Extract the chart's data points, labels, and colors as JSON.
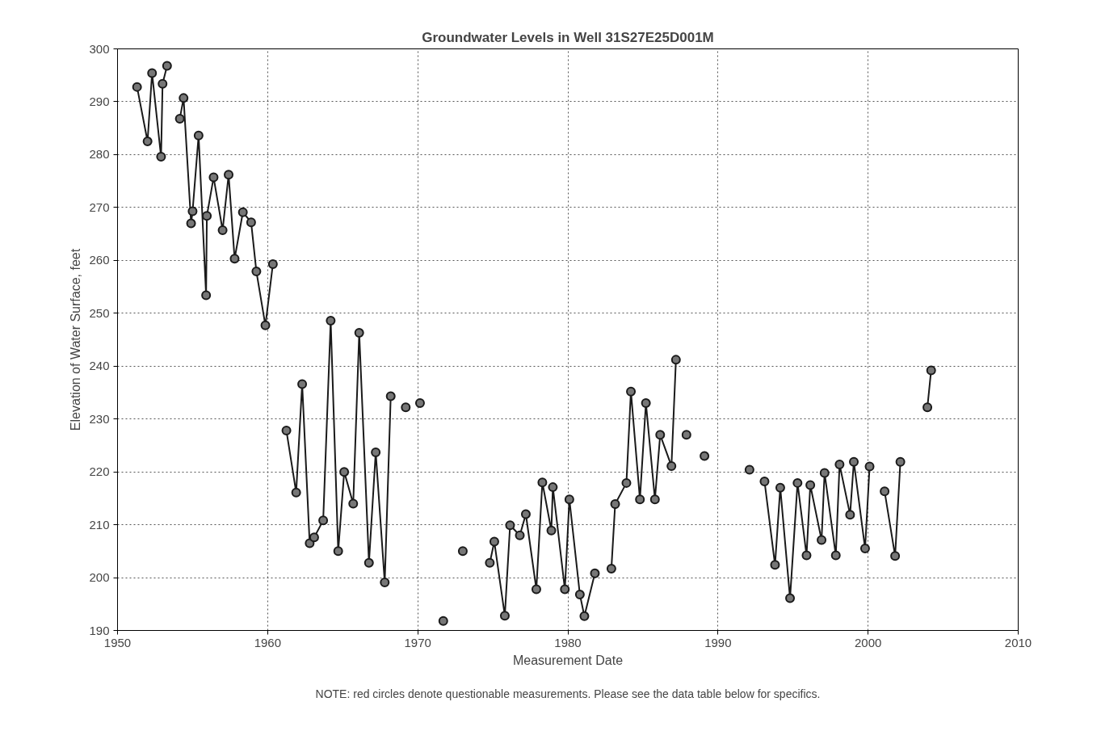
{
  "chart_data": {
    "type": "line",
    "title": "Groundwater Levels in Well 31S27E25D001M",
    "xlabel": "Measurement Date",
    "ylabel": "Elevation of Water Surface, feet",
    "annotations": [
      "NOTE: red circles denote questionable measurements. Please see the data table below for specifics."
    ],
    "xlim": [
      1950,
      2010
    ],
    "xticks": [
      1950,
      1960,
      1970,
      1980,
      1990,
      2000,
      2010
    ],
    "ylim": [
      190,
      300
    ],
    "yticks": [
      190,
      200,
      210,
      220,
      230,
      240,
      250,
      260,
      270,
      280,
      290,
      300
    ],
    "grid": true,
    "marker": "circle",
    "line_style": "solid",
    "series": [
      {
        "color": "#1a1a1a",
        "x": [
          1951.3,
          1952.0,
          1952.3,
          1952.9,
          1953.0,
          1953.3,
          1953.7,
          1954.15,
          1954.4,
          1954.9,
          1955.0,
          1955.4,
          1955.9,
          1955.95,
          1956.4,
          1957.0,
          1957.4,
          1957.8,
          1958.35,
          1958.9,
          1959.25,
          1959.85,
          1960.35,
          1960.8,
          1961.25,
          1961.9,
          1962.3,
          1962.8,
          1963.1,
          1963.7,
          1964.2,
          1964.7,
          1965.1,
          1965.7,
          1966.1,
          1966.75,
          1967.2,
          1967.8,
          1968.2,
          1968.7,
          1969.2,
          1969.7,
          1970.15,
          1970.9,
          1971.7,
          1972.3,
          1973.0,
          1973.9,
          1974.8,
          1975.1,
          1975.8,
          1976.15,
          1976.8,
          1977.2,
          1977.9,
          1978.3,
          1978.9,
          1979.0,
          1979.8,
          1980.1,
          1980.8,
          1981.1,
          1981.8,
          1982.3,
          1982.9,
          1983.15,
          1983.9,
          1984.2,
          1984.8,
          1985.2,
          1985.8,
          1986.15,
          1986.9,
          1987.2,
          1987.5,
          1987.9,
          1988.5,
          1989.1,
          1990.6,
          1992.1,
          1992.6,
          1993.1,
          1993.8,
          1994.15,
          1994.8,
          1995.3,
          1995.9,
          1996.15,
          1996.9,
          1997.1,
          1997.85,
          1998.1,
          1998.8,
          1999.05,
          1999.8,
          2000.1,
          2000.6,
          2001.1,
          2001.8,
          2002.15,
          2003.0,
          2003.95,
          2004.2
        ],
        "values": [
          292.8,
          282.5,
          295.4,
          279.6,
          293.4,
          296.8,
          null,
          286.8,
          290.7,
          267.0,
          269.3,
          283.6,
          253.4,
          268.4,
          275.7,
          265.7,
          276.2,
          260.3,
          269.1,
          267.2,
          257.9,
          247.7,
          259.3,
          null,
          227.8,
          216.1,
          236.6,
          206.5,
          207.6,
          210.8,
          248.6,
          205.0,
          220.0,
          214.0,
          246.3,
          202.8,
          223.7,
          199.1,
          234.3,
          null,
          232.2,
          null,
          233.0,
          null,
          191.8,
          null,
          205.0,
          null,
          202.8,
          206.8,
          192.8,
          209.9,
          208.0,
          212.0,
          197.8,
          218.0,
          208.9,
          217.1,
          197.8,
          214.8,
          196.8,
          192.7,
          200.8,
          null,
          201.7,
          213.9,
          217.9,
          235.2,
          214.8,
          233.0,
          214.8,
          227.0,
          221.1,
          241.2,
          null,
          227.0,
          null,
          223.0,
          null,
          220.4,
          null,
          218.2,
          202.4,
          217.0,
          196.1,
          217.9,
          204.2,
          217.5,
          207.1,
          219.8,
          204.2,
          221.4,
          211.9,
          221.9,
          205.5,
          221.0,
          null,
          216.3,
          204.1,
          221.9,
          null,
          232.2,
          239.2
        ]
      }
    ]
  }
}
